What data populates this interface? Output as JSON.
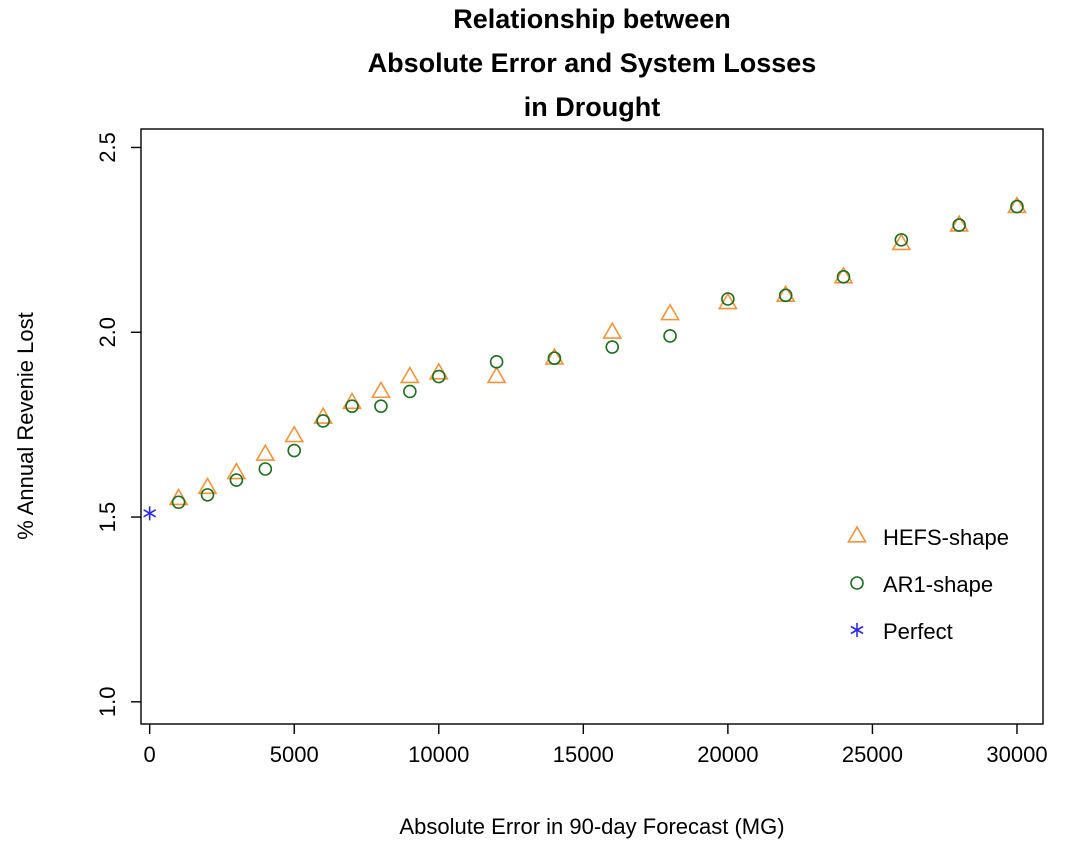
{
  "chart_data": {
    "type": "scatter",
    "title": [
      "Relationship between",
      "Absolute Error and System Losses",
      "in Drought"
    ],
    "xlabel": "Absolute Error in 90-day Forecast (MG)",
    "ylabel": "% Annual Revenie Lost",
    "xlim": [
      -300,
      30900
    ],
    "ylim": [
      0.94,
      2.55
    ],
    "xticks": [
      0,
      5000,
      10000,
      15000,
      20000,
      25000,
      30000
    ],
    "yticks": [
      1.0,
      1.5,
      2.0,
      2.5
    ],
    "grid": false,
    "legend_position": "right",
    "colors": {
      "hefs": "#f5923a",
      "ar1": "#1e6e1e",
      "perfect": "#2a2aee",
      "axis": "#000000"
    },
    "series": [
      {
        "name": "HEFS-shape",
        "marker": "triangle",
        "x": [
          1000,
          2000,
          3000,
          4000,
          5000,
          6000,
          7000,
          8000,
          9000,
          10000,
          12000,
          14000,
          16000,
          18000,
          20000,
          22000,
          24000,
          26000,
          28000,
          30000
        ],
        "y": [
          1.55,
          1.58,
          1.62,
          1.67,
          1.72,
          1.77,
          1.81,
          1.84,
          1.88,
          1.89,
          1.88,
          1.93,
          2.0,
          2.05,
          2.08,
          2.1,
          2.15,
          2.24,
          2.29,
          2.34
        ]
      },
      {
        "name": "AR1-shape",
        "marker": "circle",
        "x": [
          1000,
          2000,
          3000,
          4000,
          5000,
          6000,
          7000,
          8000,
          9000,
          10000,
          12000,
          14000,
          16000,
          18000,
          20000,
          22000,
          24000,
          26000,
          28000,
          30000
        ],
        "y": [
          1.54,
          1.56,
          1.6,
          1.63,
          1.68,
          1.76,
          1.8,
          1.8,
          1.84,
          1.88,
          1.92,
          1.93,
          1.96,
          1.99,
          2.09,
          2.1,
          2.15,
          2.25,
          2.29,
          2.34
        ]
      },
      {
        "name": "Perfect",
        "marker": "asterisk",
        "x": [
          0
        ],
        "y": [
          1.51
        ]
      }
    ]
  }
}
